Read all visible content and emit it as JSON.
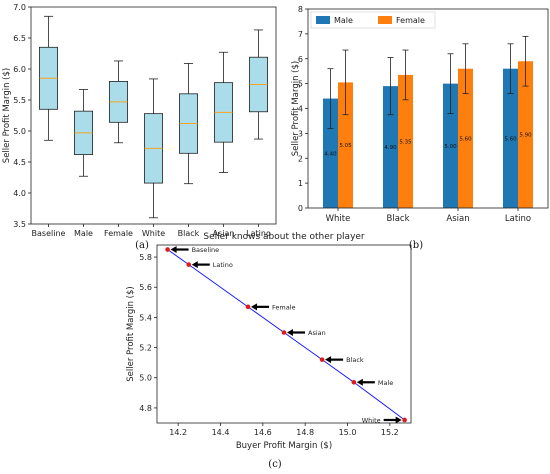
{
  "captions": {
    "a": "(a)",
    "b": "(b)",
    "c": "(c)"
  },
  "chart_data": [
    {
      "type": "box",
      "title": "",
      "xlabel": "",
      "ylabel": "Seller Profit Margin ($)",
      "ylim": [
        3.5,
        7.0
      ],
      "yticks": [
        "3.5",
        "4.0",
        "4.5",
        "5.0",
        "5.5",
        "6.0",
        "6.5",
        "7.0"
      ],
      "categories": [
        "Baseline",
        "Male",
        "Female",
        "White",
        "Black",
        "Asian",
        "Latino"
      ],
      "boxes": [
        {
          "whislo": 4.85,
          "q1": 5.35,
          "med": 5.85,
          "q3": 6.35,
          "whishi": 6.85
        },
        {
          "whislo": 4.27,
          "q1": 4.62,
          "med": 4.97,
          "q3": 5.32,
          "whishi": 5.67
        },
        {
          "whislo": 4.81,
          "q1": 5.14,
          "med": 5.47,
          "q3": 5.8,
          "whishi": 6.13
        },
        {
          "whislo": 3.6,
          "q1": 4.16,
          "med": 4.72,
          "q3": 5.28,
          "whishi": 5.84
        },
        {
          "whislo": 4.15,
          "q1": 4.64,
          "med": 5.12,
          "q3": 5.6,
          "whishi": 6.09
        },
        {
          "whislo": 4.33,
          "q1": 4.82,
          "med": 5.3,
          "q3": 5.78,
          "whishi": 6.27
        },
        {
          "whislo": 4.87,
          "q1": 5.31,
          "med": 5.75,
          "q3": 6.19,
          "whishi": 6.63
        }
      ],
      "colors": {
        "box": "#aadcea",
        "median": "#f5a623"
      }
    },
    {
      "type": "bar",
      "title": "",
      "xlabel": "",
      "ylabel": "Seller Profit Margin ($)",
      "ylim": [
        0,
        8
      ],
      "yticks": [
        "0",
        "1",
        "2",
        "3",
        "4",
        "5",
        "6",
        "7",
        "8"
      ],
      "categories": [
        "White",
        "Black",
        "Asian",
        "Latino"
      ],
      "series": [
        {
          "name": "Male",
          "color": "#1f77b4",
          "values": [
            4.4,
            4.9,
            5.0,
            5.6
          ],
          "labels": [
            "4.40",
            "4.90",
            "5.00",
            "5.60"
          ],
          "err": [
            1.2,
            1.15,
            1.2,
            1.0
          ]
        },
        {
          "name": "Female",
          "color": "#ff7f0e",
          "values": [
            5.05,
            5.35,
            5.6,
            5.9
          ],
          "labels": [
            "5.05",
            "5.35",
            "5.60",
            "5.90"
          ],
          "err": [
            1.3,
            1.0,
            1.0,
            1.0
          ]
        }
      ],
      "legend": "top-left"
    },
    {
      "type": "line",
      "title": "Seller knows about the other player",
      "xlabel": "Buyer Profit Margin ($)",
      "ylabel": "Seller Profit Margin ($)",
      "xlim": [
        14.1,
        15.3
      ],
      "ylim": [
        4.7,
        5.88
      ],
      "xticks": [
        "14.2",
        "14.4",
        "14.6",
        "14.8",
        "15.0",
        "15.2"
      ],
      "yticks": [
        "4.8",
        "5.0",
        "5.2",
        "5.4",
        "5.6",
        "5.8"
      ],
      "points": [
        {
          "label": "Baseline",
          "x": 14.15,
          "y": 5.85
        },
        {
          "label": "Latino",
          "x": 14.25,
          "y": 5.75
        },
        {
          "label": "Female",
          "x": 14.53,
          "y": 5.47
        },
        {
          "label": "Asian",
          "x": 14.7,
          "y": 5.3
        },
        {
          "label": "Black",
          "x": 14.88,
          "y": 5.12
        },
        {
          "label": "Male",
          "x": 15.03,
          "y": 4.97
        },
        {
          "label": "White",
          "x": 15.27,
          "y": 4.72
        }
      ],
      "colors": {
        "line": "#1a1aff",
        "point": "#e0191c"
      }
    }
  ]
}
